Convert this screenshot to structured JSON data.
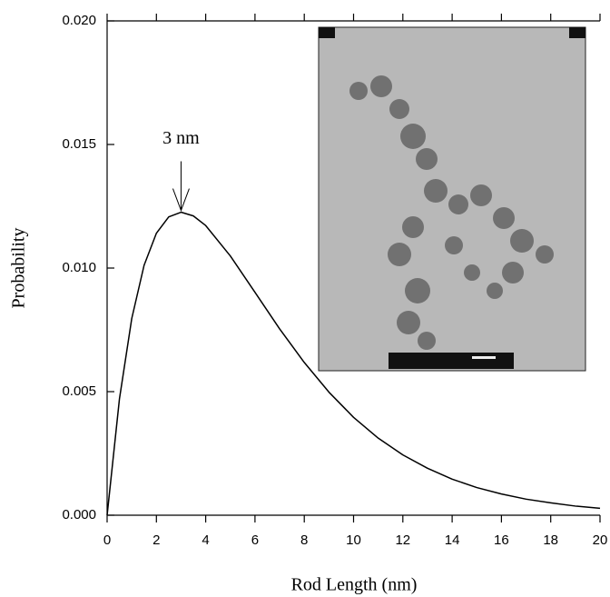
{
  "chart_data": {
    "type": "line",
    "xlabel": "Rod Length (nm)",
    "ylabel": "Probability",
    "x": [
      0,
      0.5,
      1,
      1.5,
      2,
      2.5,
      3,
      3.5,
      4,
      5,
      6,
      7,
      8,
      9,
      10,
      11,
      12,
      13,
      14,
      15,
      16,
      17,
      18,
      19,
      20
    ],
    "series": [
      {
        "color": "#000000",
        "values": [
          0,
          0.0047,
          0.00796,
          0.01011,
          0.01141,
          0.01207,
          0.01226,
          0.01211,
          0.01172,
          0.01049,
          0.00902,
          0.00754,
          0.00618,
          0.00498,
          0.00396,
          0.00312,
          0.00244,
          0.0019,
          0.00146,
          0.00112,
          0.00086,
          0.00065,
          0.0005,
          0.00037,
          0.00028
        ]
      }
    ],
    "xlim": [
      0,
      20
    ],
    "xticks": [
      0,
      2,
      4,
      6,
      8,
      10,
      12,
      14,
      16,
      18,
      20
    ],
    "ylim": [
      0,
      0.02
    ],
    "yticks": [
      {
        "value": 0,
        "label": "0.000"
      },
      0.005,
      {
        "value": 0.01,
        "label": "0.010"
      },
      0.015,
      {
        "value": 0.02,
        "label": "0.020"
      }
    ],
    "annotation": {
      "text": "3 nm",
      "x": 3,
      "y": 0.01226
    }
  }
}
